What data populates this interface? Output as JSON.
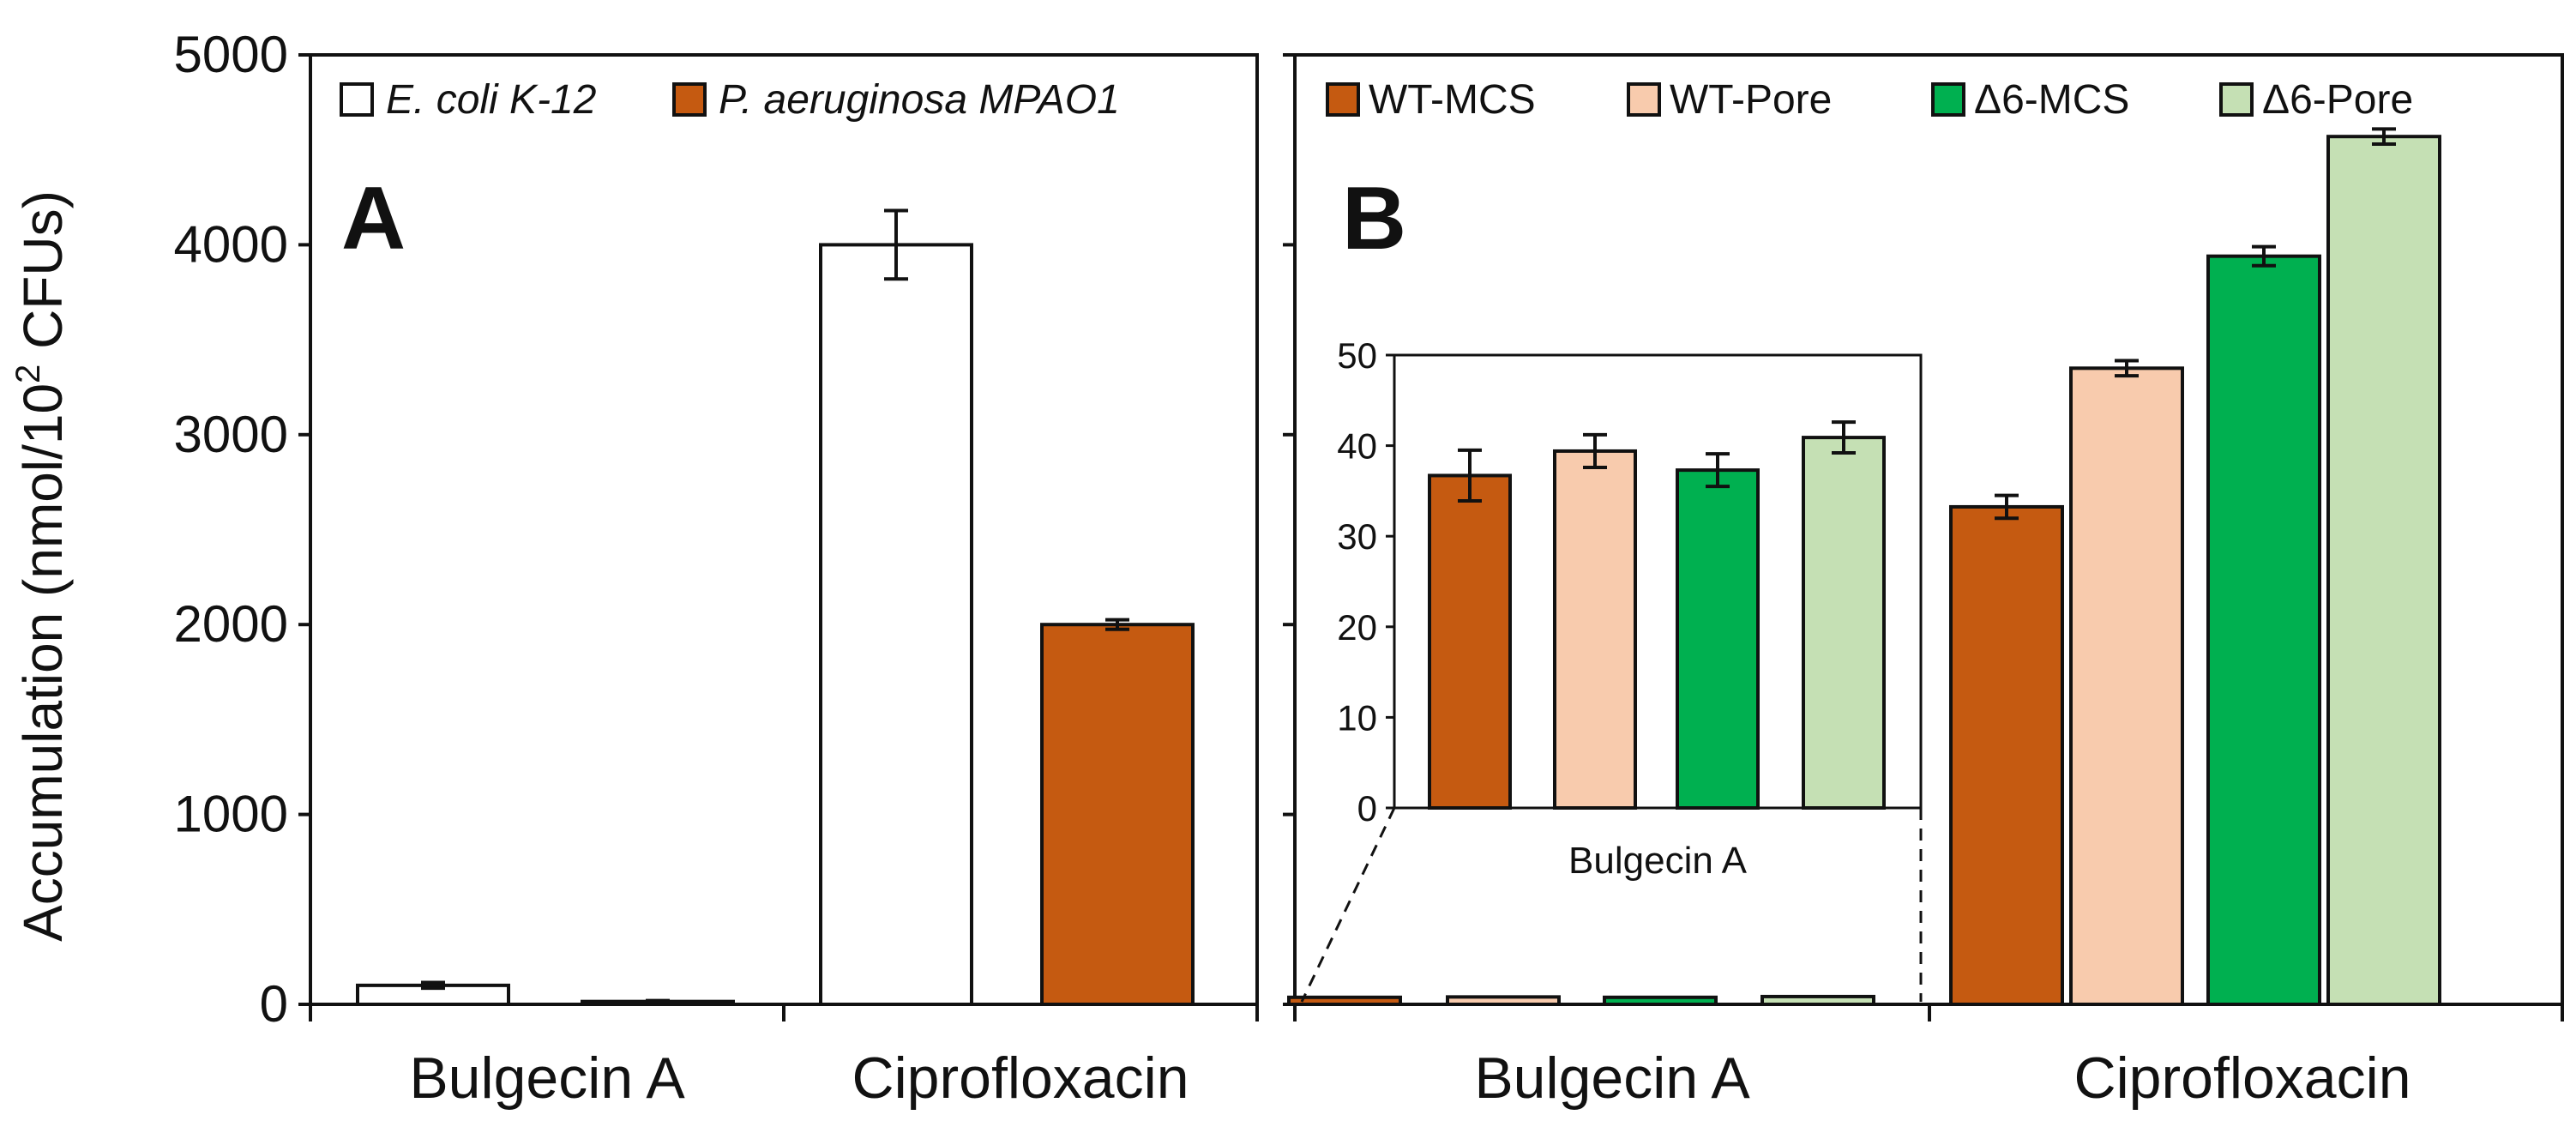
{
  "colors": {
    "axis": "#111111",
    "wt_mcs": "#c55a11",
    "wt_pore": "#f8cbad",
    "d6_mcs": "#00b050",
    "d6_pore": "#c5e0b4",
    "ecoli": "#ffffff",
    "paeru": "#c55a11"
  },
  "y_axis_label": {
    "main": "Accumulation (nmol/10",
    "sup": "2",
    "tail": " CFUs)"
  },
  "chart_data": [
    {
      "type": "bar",
      "panel": "A",
      "panel_label": "A",
      "categories": [
        "Bulgecin A",
        "Ciprofloxacin"
      ],
      "ylim": [
        0,
        5000
      ],
      "yticks": [
        "0",
        "1000",
        "2000",
        "3000",
        "4000",
        "5000"
      ],
      "series": [
        {
          "name": "E. coli K-12",
          "color": "#ffffff",
          "values": [
            100,
            4000
          ],
          "errors": [
            15,
            180
          ]
        },
        {
          "name": "P. aeruginosa MPAO1",
          "color": "#c55a11",
          "values": [
            15,
            2000
          ],
          "errors": [
            5,
            25
          ]
        }
      ],
      "legend_position": "top"
    },
    {
      "type": "bar",
      "panel": "B",
      "panel_label": "B",
      "categories": [
        "Bulgecin A",
        "Ciprofloxacin"
      ],
      "ylim": [
        0,
        5000
      ],
      "yticks": [
        "0",
        "1000",
        "2000",
        "3000",
        "4000",
        "5000"
      ],
      "series": [
        {
          "name": "WT-MCS",
          "color": "#c55a11",
          "values": [
            37,
            2620
          ],
          "errors": [
            3,
            60
          ]
        },
        {
          "name": "WT-Pore",
          "color": "#f8cbad",
          "values": [
            39,
            3350
          ],
          "errors": [
            2,
            40
          ]
        },
        {
          "name": "Δ6-MCS",
          "color": "#00b050",
          "values": [
            37,
            3940
          ],
          "errors": [
            2,
            50
          ]
        },
        {
          "name": "Δ6-Pore",
          "color": "#c5e0b4",
          "values": [
            41,
            4570
          ],
          "errors": [
            2,
            40
          ]
        }
      ],
      "legend_position": "top"
    },
    {
      "type": "bar",
      "panel": "B-inset",
      "categories": [
        "WT-MCS",
        "WT-Pore",
        "Δ6-MCS",
        "Δ6-Pore"
      ],
      "xlabel": "Bulgecin A",
      "ylim": [
        0,
        50
      ],
      "yticks": [
        "0",
        "10",
        "20",
        "30",
        "40",
        "50"
      ],
      "values": [
        36.7,
        39.4,
        37.3,
        40.9
      ],
      "errors": [
        2.8,
        1.8,
        1.8,
        1.7
      ],
      "colors": [
        "#c55a11",
        "#f8cbad",
        "#00b050",
        "#c5e0b4"
      ]
    }
  ]
}
